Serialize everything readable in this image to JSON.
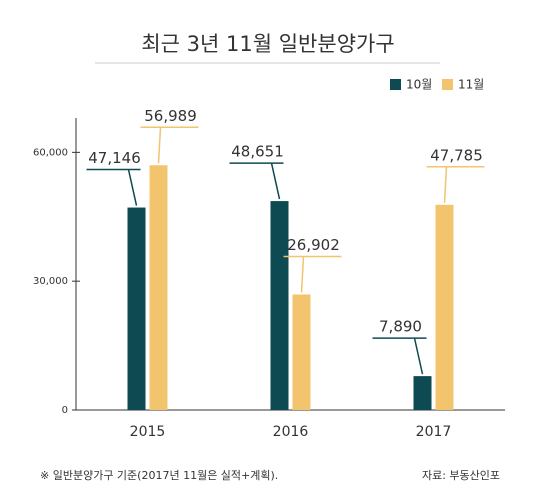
{
  "chart_data": {
    "type": "bar",
    "title": "최근 3년 11월 일반분양가구",
    "categories": [
      "2015",
      "2016",
      "2017"
    ],
    "series": [
      {
        "name": "10월",
        "color": "#0e4a52",
        "values": [
          47146,
          48651,
          7890
        ],
        "value_labels": [
          "47,146",
          "48,651",
          "7,890"
        ]
      },
      {
        "name": "11월",
        "color": "#f2c46e",
        "values": [
          56989,
          26902,
          47785
        ],
        "value_labels": [
          "56,989",
          "26,902",
          "47,785"
        ]
      }
    ],
    "ylim": [
      0,
      68000
    ],
    "yticks": [
      0,
      {
        "value": 30000,
        "label": "30,000"
      },
      {
        "value": 60000,
        "label": "60,000"
      }
    ],
    "legend": "top-right",
    "note": "※ 일반분양가구 기준(2017년 11월은 실적+계획).",
    "source": "자료: 부동산인포"
  }
}
